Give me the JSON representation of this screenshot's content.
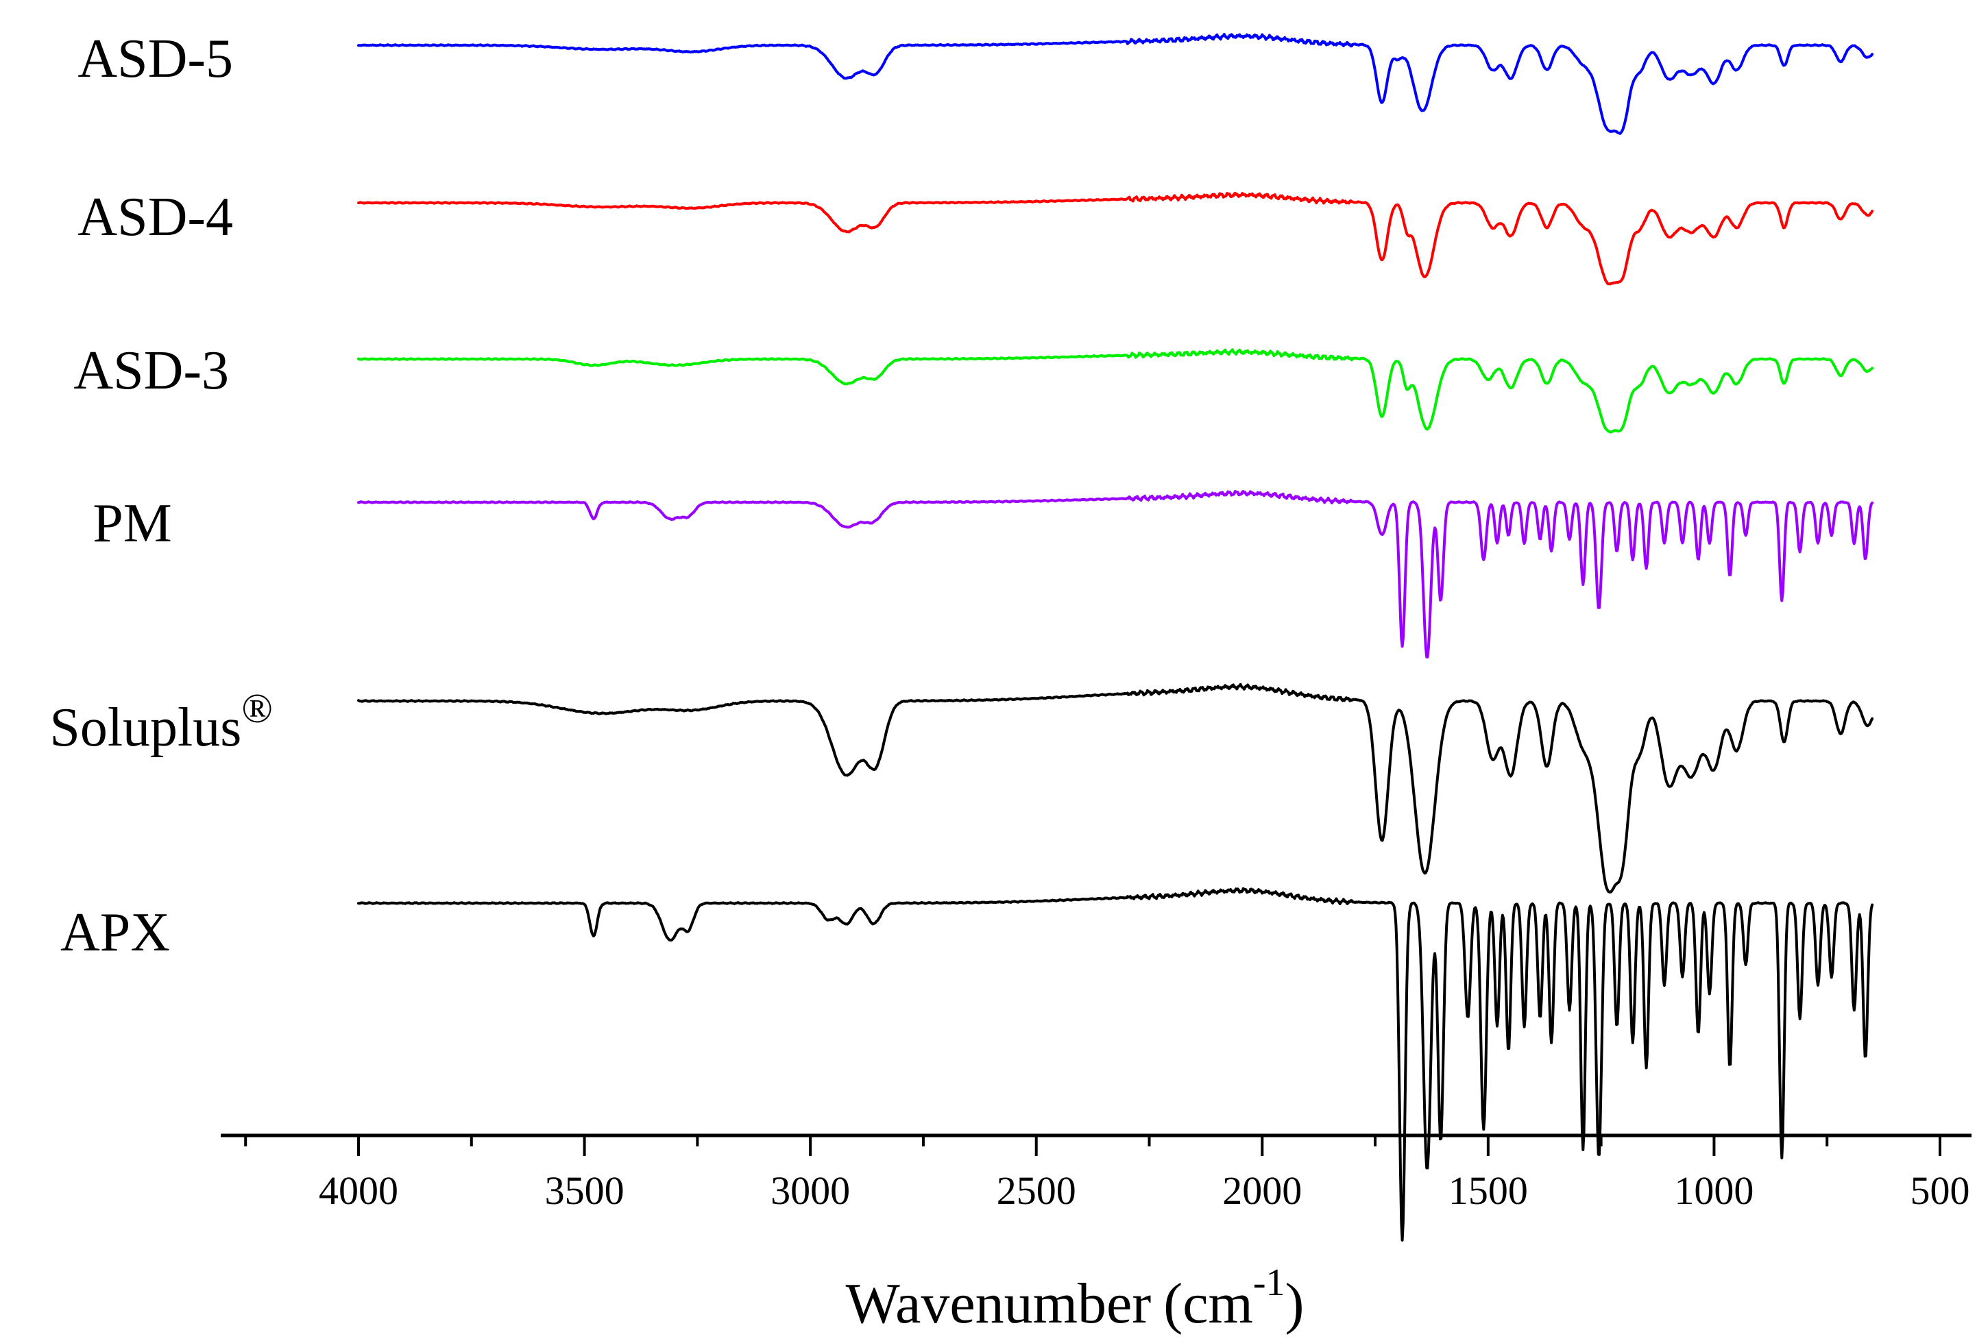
{
  "chart_data": {
    "type": "line",
    "title": "",
    "xlabel": "Wavenumber",
    "xlabel_unit_base": "(cm",
    "xlabel_unit_exp": "-1",
    "xlabel_unit_close": ")",
    "ylabel": "",
    "xlim": [
      4300,
      500
    ],
    "x_reversed": true,
    "xticks": [
      4000,
      3500,
      3000,
      2500,
      2000,
      1500,
      1000,
      500
    ],
    "xtick_labels": [
      "4000",
      "3500",
      "3000",
      "2500",
      "2000",
      "1500",
      "1000",
      "500"
    ],
    "x_range_plotted": [
      4000,
      650
    ],
    "y_axis_shown": false,
    "legend": "inline-left",
    "series": [
      {
        "name": "ASD-5",
        "registered": false,
        "color": "#0000ff",
        "baseline_y": 100,
        "peaks": [
          [
            3460,
            1,
            90
          ],
          [
            3260,
            1.5,
            60
          ],
          [
            2920,
            8,
            32
          ],
          [
            2855,
            6,
            20
          ],
          [
            2200,
            -1,
            200
          ],
          [
            2030,
            -1.5,
            90
          ],
          [
            1735,
            14,
            12
          ],
          [
            1700,
            3,
            10
          ],
          [
            1645,
            16,
            20
          ],
          [
            1490,
            6,
            14
          ],
          [
            1450,
            8,
            14
          ],
          [
            1370,
            6,
            12
          ],
          [
            1290,
            4,
            18
          ],
          [
            1235,
            20,
            22
          ],
          [
            1200,
            14,
            14
          ],
          [
            1165,
            6,
            14
          ],
          [
            1100,
            8,
            18
          ],
          [
            1050,
            7,
            20
          ],
          [
            1000,
            9,
            16
          ],
          [
            950,
            6,
            14
          ],
          [
            845,
            5,
            8
          ],
          [
            720,
            4,
            10
          ],
          [
            660,
            3,
            12
          ]
        ]
      },
      {
        "name": "ASD-4",
        "registered": false,
        "color": "#ff0000",
        "baseline_y": 100,
        "peaks": [
          [
            3460,
            1,
            90
          ],
          [
            3260,
            1.2,
            60
          ],
          [
            2920,
            7,
            32
          ],
          [
            2855,
            5,
            20
          ],
          [
            2200,
            -1,
            200
          ],
          [
            2030,
            -1.2,
            90
          ],
          [
            1735,
            14,
            12
          ],
          [
            1680,
            5,
            8
          ],
          [
            1640,
            18,
            20
          ],
          [
            1490,
            6,
            14
          ],
          [
            1450,
            8,
            14
          ],
          [
            1370,
            6,
            12
          ],
          [
            1290,
            5,
            18
          ],
          [
            1235,
            19,
            22
          ],
          [
            1200,
            12,
            14
          ],
          [
            1165,
            6,
            14
          ],
          [
            1100,
            8,
            18
          ],
          [
            1050,
            7,
            20
          ],
          [
            1000,
            8,
            16
          ],
          [
            950,
            6,
            14
          ],
          [
            845,
            6,
            8
          ],
          [
            720,
            4,
            10
          ],
          [
            660,
            3,
            12
          ]
        ]
      },
      {
        "name": "ASD-3",
        "registered": false,
        "color": "#00ee00",
        "baseline_y": 100,
        "peaks": [
          [
            3480,
            1.5,
            40
          ],
          [
            3300,
            1.5,
            60
          ],
          [
            2920,
            6,
            32
          ],
          [
            2855,
            4,
            20
          ],
          [
            2200,
            -1,
            200
          ],
          [
            2030,
            -1,
            90
          ],
          [
            1735,
            14,
            12
          ],
          [
            1680,
            6,
            8
          ],
          [
            1635,
            17,
            20
          ],
          [
            1500,
            5,
            14
          ],
          [
            1450,
            7,
            14
          ],
          [
            1370,
            6,
            12
          ],
          [
            1290,
            5,
            18
          ],
          [
            1235,
            17,
            22
          ],
          [
            1200,
            11,
            14
          ],
          [
            1165,
            6,
            14
          ],
          [
            1100,
            8,
            18
          ],
          [
            1050,
            6,
            20
          ],
          [
            1000,
            8,
            16
          ],
          [
            950,
            6,
            14
          ],
          [
            845,
            6,
            8
          ],
          [
            720,
            4,
            10
          ],
          [
            660,
            3,
            12
          ]
        ]
      },
      {
        "name": "PM",
        "registered": false,
        "color": "#9900ff",
        "baseline_y": 100,
        "peaks": [
          [
            3480,
            4,
            8
          ],
          [
            3310,
            4,
            20
          ],
          [
            3270,
            3,
            15
          ],
          [
            2920,
            6,
            30
          ],
          [
            2860,
            4,
            20
          ],
          [
            2200,
            -1,
            200
          ],
          [
            2030,
            -1.5,
            90
          ],
          [
            1735,
            8,
            10
          ],
          [
            1690,
            35,
            6
          ],
          [
            1635,
            38,
            8
          ],
          [
            1605,
            24,
            6
          ],
          [
            1510,
            14,
            6
          ],
          [
            1480,
            10,
            5
          ],
          [
            1455,
            8,
            5
          ],
          [
            1420,
            10,
            5
          ],
          [
            1385,
            9,
            5
          ],
          [
            1360,
            12,
            5
          ],
          [
            1320,
            9,
            5
          ],
          [
            1290,
            20,
            5
          ],
          [
            1255,
            26,
            6
          ],
          [
            1215,
            12,
            5
          ],
          [
            1180,
            14,
            5
          ],
          [
            1150,
            16,
            5
          ],
          [
            1110,
            10,
            5
          ],
          [
            1070,
            10,
            5
          ],
          [
            1035,
            14,
            5
          ],
          [
            1010,
            10,
            5
          ],
          [
            965,
            18,
            5
          ],
          [
            930,
            8,
            5
          ],
          [
            850,
            24,
            5
          ],
          [
            810,
            12,
            5
          ],
          [
            770,
            10,
            5
          ],
          [
            740,
            8,
            5
          ],
          [
            690,
            10,
            5
          ],
          [
            665,
            14,
            5
          ]
        ]
      },
      {
        "name": "Soluplus",
        "registered": true,
        "color": "#000000",
        "baseline_y": 100,
        "peaks": [
          [
            3460,
            3,
            90
          ],
          [
            3260,
            2,
            60
          ],
          [
            2920,
            18,
            32
          ],
          [
            2855,
            14,
            20
          ],
          [
            2200,
            -2,
            200
          ],
          [
            2030,
            -2,
            90
          ],
          [
            1735,
            34,
            14
          ],
          [
            1640,
            42,
            22
          ],
          [
            1490,
            14,
            14
          ],
          [
            1450,
            18,
            14
          ],
          [
            1370,
            16,
            12
          ],
          [
            1290,
            10,
            18
          ],
          [
            1235,
            45,
            22
          ],
          [
            1200,
            26,
            14
          ],
          [
            1165,
            12,
            14
          ],
          [
            1100,
            20,
            18
          ],
          [
            1050,
            18,
            20
          ],
          [
            1000,
            16,
            16
          ],
          [
            950,
            12,
            14
          ],
          [
            845,
            10,
            8
          ],
          [
            720,
            8,
            10
          ],
          [
            660,
            6,
            12
          ]
        ]
      },
      {
        "name": "APX",
        "registered": false,
        "color": "#000000",
        "baseline_y": 100,
        "peaks": [
          [
            3480,
            8,
            8
          ],
          [
            3310,
            9,
            18
          ],
          [
            3270,
            6,
            12
          ],
          [
            2960,
            4,
            15
          ],
          [
            2920,
            5,
            15
          ],
          [
            2860,
            5,
            15
          ],
          [
            2200,
            -1.5,
            200
          ],
          [
            2030,
            -2,
            90
          ],
          [
            1690,
            82,
            6
          ],
          [
            1635,
            65,
            8
          ],
          [
            1605,
            58,
            6
          ],
          [
            1545,
            28,
            6
          ],
          [
            1510,
            55,
            6
          ],
          [
            1480,
            30,
            5
          ],
          [
            1455,
            36,
            5
          ],
          [
            1420,
            30,
            5
          ],
          [
            1385,
            28,
            5
          ],
          [
            1360,
            34,
            5
          ],
          [
            1320,
            26,
            5
          ],
          [
            1290,
            60,
            5
          ],
          [
            1255,
            62,
            6
          ],
          [
            1215,
            30,
            5
          ],
          [
            1180,
            34,
            5
          ],
          [
            1150,
            40,
            5
          ],
          [
            1110,
            20,
            5
          ],
          [
            1070,
            18,
            5
          ],
          [
            1035,
            32,
            5
          ],
          [
            1010,
            22,
            5
          ],
          [
            965,
            40,
            5
          ],
          [
            930,
            15,
            5
          ],
          [
            850,
            62,
            5
          ],
          [
            810,
            28,
            5
          ],
          [
            770,
            20,
            5
          ],
          [
            740,
            18,
            5
          ],
          [
            690,
            26,
            5
          ],
          [
            665,
            38,
            5
          ]
        ]
      }
    ]
  },
  "registered_mark": "®"
}
